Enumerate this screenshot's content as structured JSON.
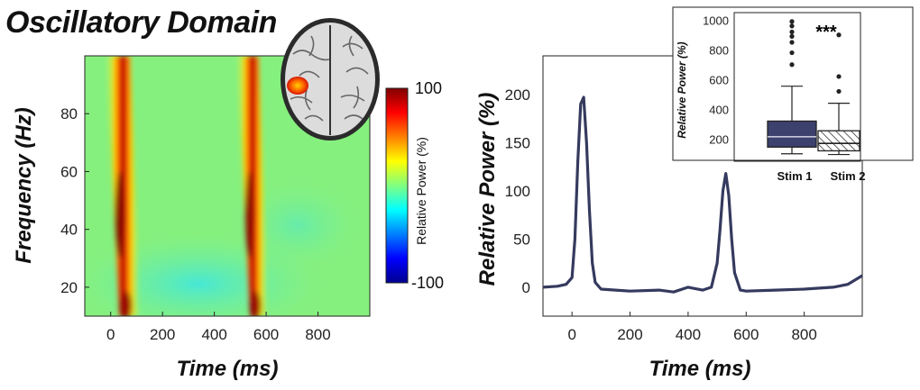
{
  "title": "Oscillatory Domain",
  "colors": {
    "line": "#353a5e",
    "box_fill": "#3c416e",
    "frame": "#222222"
  },
  "chart_data": [
    {
      "type": "heatmap",
      "xlabel": "Time (ms)",
      "ylabel": "Frequency (Hz)",
      "xlim": [
        -100,
        1000
      ],
      "ylim": [
        10,
        100
      ],
      "xticks": [
        0,
        200,
        400,
        600,
        800
      ],
      "yticks": [
        20,
        40,
        60,
        80
      ],
      "colorbar": {
        "label": "Relative Power (%)",
        "max_label": "100",
        "min_label": "-100",
        "range": [
          -100,
          100
        ],
        "colormap": "jet"
      },
      "hotspots": [
        {
          "time_ms": 30,
          "value_max": 100
        },
        {
          "time_ms": 530,
          "value_max": 90
        }
      ],
      "inset": "brain-top-view"
    },
    {
      "type": "line",
      "xlabel": "Time (ms)",
      "ylabel": "Relative Power (%)",
      "xlim": [
        -100,
        1000
      ],
      "ylim": [
        -30,
        240
      ],
      "xticks": [
        0,
        200,
        400,
        600,
        800
      ],
      "yticks": [
        0,
        50,
        100,
        150,
        200
      ],
      "series": [
        {
          "x": [
            -100,
            -50,
            -20,
            0,
            10,
            20,
            30,
            40,
            50,
            60,
            70,
            80,
            100,
            150,
            200,
            300,
            350,
            400,
            450,
            480,
            500,
            510,
            520,
            530,
            540,
            550,
            560,
            580,
            600,
            700,
            800,
            900,
            950,
            1000
          ],
          "y": [
            0,
            1,
            3,
            10,
            50,
            130,
            190,
            197,
            150,
            80,
            25,
            5,
            -2,
            -3,
            -4,
            -3,
            -5,
            0,
            -3,
            0,
            25,
            60,
            100,
            118,
            95,
            50,
            15,
            -3,
            -4,
            -3,
            -2,
            0,
            3,
            12
          ]
        }
      ]
    },
    {
      "type": "box",
      "ylabel": "Relative Power (%)",
      "ylim": [
        50,
        1050
      ],
      "yticks": [
        200,
        400,
        600,
        800,
        1000
      ],
      "categories": [
        "Stim 1",
        "Stim 2"
      ],
      "annotation": "***",
      "boxes": [
        {
          "name": "Stim 1",
          "min": 100,
          "q1": 145,
          "median": 215,
          "q3": 320,
          "max": 555,
          "outliers": [
            700,
            780,
            850,
            890,
            920,
            960,
            990
          ],
          "fill": "solid"
        },
        {
          "name": "Stim 2",
          "min": 95,
          "q1": 120,
          "median": 170,
          "q3": 255,
          "max": 440,
          "outliers": [
            520,
            620,
            900
          ],
          "fill": "hatched"
        }
      ]
    }
  ]
}
